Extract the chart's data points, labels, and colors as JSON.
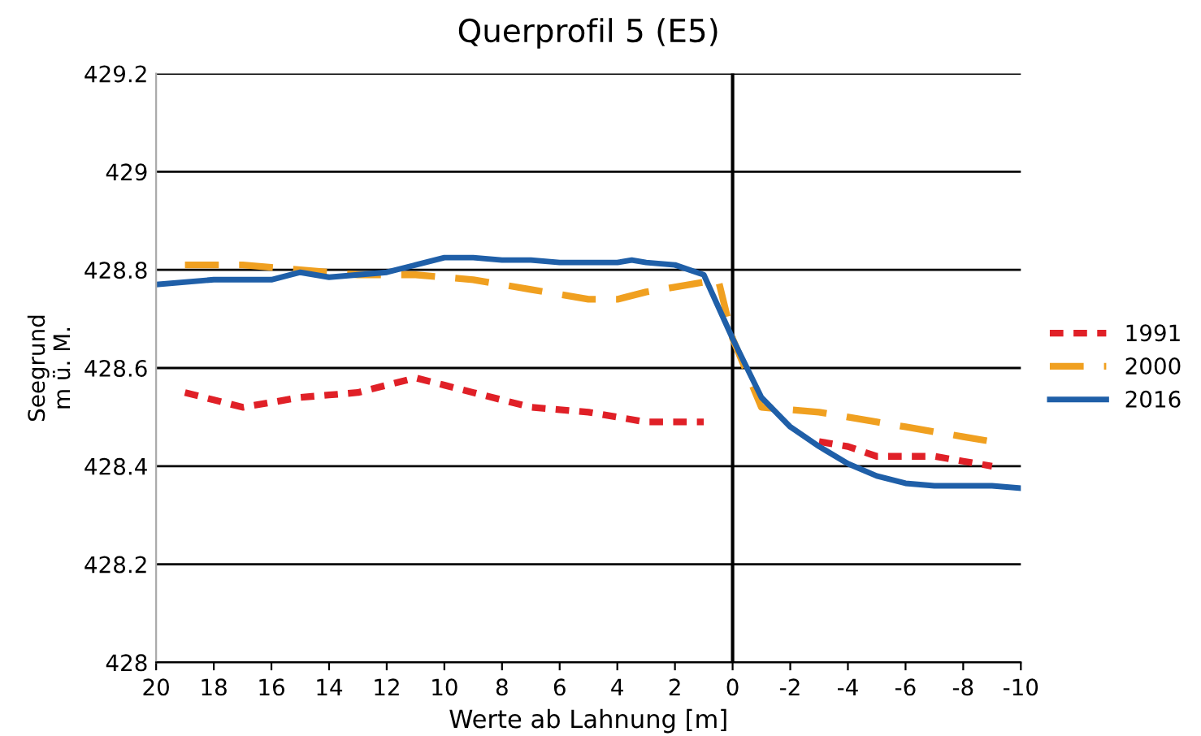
{
  "chart_data": {
    "type": "line",
    "title": "Querprofil 5 (E5)",
    "xlabel": "Werte ab Lahnung [m]",
    "ylabel": "Seegrund\nm ü. M.",
    "xlim": [
      20,
      -10
    ],
    "xticks": [
      20,
      18,
      16,
      14,
      12,
      10,
      8,
      6,
      4,
      2,
      0,
      -2,
      -4,
      -6,
      -8,
      -10
    ],
    "ylim": [
      428,
      429.2
    ],
    "yticks": [
      428,
      428.2,
      428.4,
      428.6,
      428.8,
      429,
      429.2
    ],
    "grid": "y",
    "legend": "right",
    "ref_lines": [
      {
        "axis": "x",
        "value": 0,
        "color": "#000000"
      }
    ],
    "series": [
      {
        "name": "1991",
        "color": "#e02027",
        "line_style": "dotted",
        "x": [
          19,
          18,
          17,
          16,
          15,
          14,
          13,
          12,
          11,
          10,
          9,
          8,
          7,
          6,
          5,
          4,
          3,
          2,
          1,
          0,
          -3,
          -4,
          -5,
          -6,
          -7,
          -8,
          -9
        ],
        "values": [
          428.55,
          428.535,
          428.52,
          428.53,
          428.54,
          428.545,
          428.55,
          428.565,
          428.58,
          428.565,
          428.55,
          428.535,
          428.52,
          428.515,
          428.51,
          428.5,
          428.49,
          428.49,
          428.49,
          null,
          428.45,
          428.44,
          428.42,
          428.42,
          428.42,
          428.41,
          428.4
        ]
      },
      {
        "name": "2000",
        "color": "#f0a020",
        "line_style": "dashed",
        "x": [
          19,
          18,
          17,
          16,
          15,
          14,
          13,
          12,
          11,
          10,
          9,
          8,
          7,
          6,
          5,
          4,
          3,
          2,
          1,
          0.5,
          0,
          -1,
          -2,
          -3,
          -4,
          -5,
          -6,
          -7,
          -8,
          -9
        ],
        "values": [
          428.81,
          428.81,
          428.81,
          428.805,
          428.8,
          428.795,
          428.79,
          428.79,
          428.79,
          428.785,
          428.78,
          428.77,
          428.76,
          428.75,
          428.74,
          428.74,
          428.755,
          428.765,
          428.775,
          428.78,
          428.66,
          428.52,
          428.515,
          428.51,
          428.5,
          428.49,
          428.48,
          428.47,
          428.46,
          428.45
        ]
      },
      {
        "name": "2016",
        "color": "#1f5fa8",
        "line_style": "solid",
        "x": [
          20,
          18,
          16,
          15,
          14,
          13,
          12,
          11,
          10,
          9,
          8,
          7,
          6,
          5,
          4,
          3.5,
          3,
          2,
          1,
          0,
          -1,
          -2,
          -3,
          -4,
          -5,
          -6,
          -7,
          -8,
          -9,
          -10
        ],
        "values": [
          428.77,
          428.78,
          428.78,
          428.795,
          428.785,
          428.79,
          428.795,
          428.81,
          428.825,
          428.825,
          428.82,
          428.82,
          428.815,
          428.815,
          428.815,
          428.82,
          428.815,
          428.81,
          428.79,
          428.66,
          428.54,
          428.48,
          428.44,
          428.405,
          428.38,
          428.365,
          428.36,
          428.36,
          428.36,
          428.355
        ]
      }
    ]
  }
}
